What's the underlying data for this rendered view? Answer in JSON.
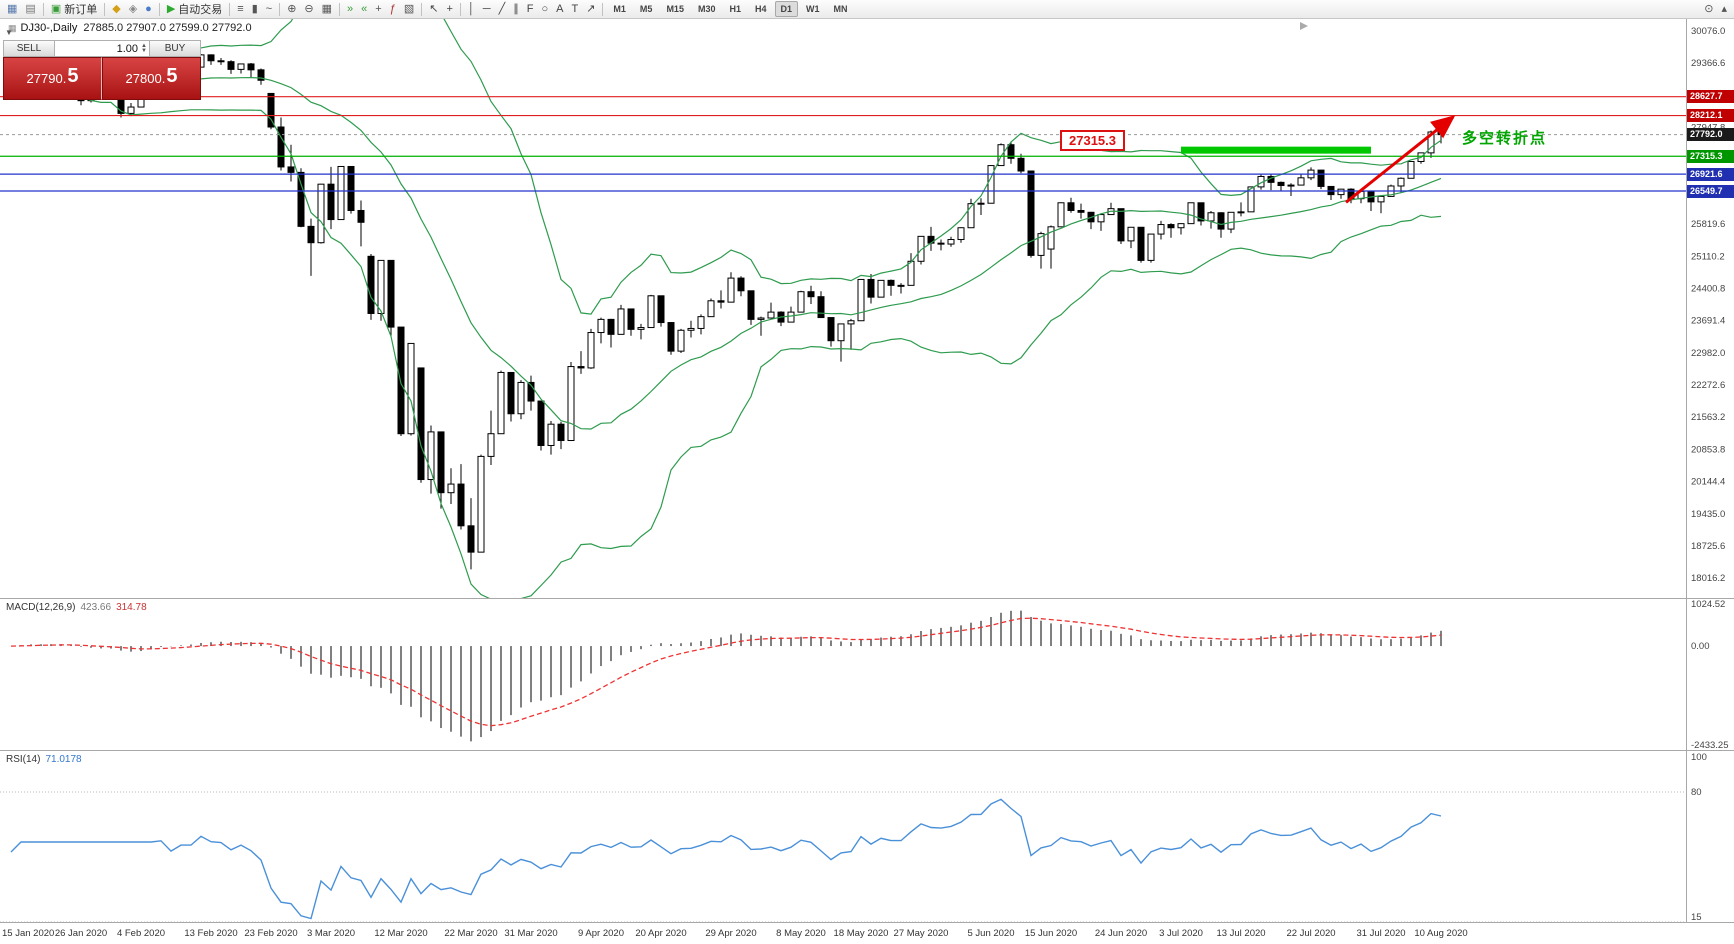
{
  "toolbar": {
    "groups": [
      [
        {
          "name": "chart-window-icon",
          "glyph": "▦",
          "color": "#5577aa"
        },
        {
          "name": "window-layout-icon",
          "glyph": "▤",
          "color": "#777777"
        }
      ],
      [
        {
          "name": "new-order-button",
          "glyph": "▣",
          "color": "#3a9d3a",
          "label": "新订单"
        }
      ],
      [
        {
          "name": "market-watch-icon",
          "glyph": "◆",
          "color": "#d4a017"
        },
        {
          "name": "data-window-icon",
          "glyph": "◈",
          "color": "#888888"
        },
        {
          "name": "community-icon",
          "glyph": "●",
          "color": "#4a7dc9"
        }
      ],
      [
        {
          "name": "autotrading-button",
          "glyph": "▶",
          "color": "#2eab2e",
          "label": "自动交易"
        }
      ],
      [
        {
          "name": "bar-chart-type-icon",
          "glyph": "≡",
          "color": "#555555"
        },
        {
          "name": "candlestick-type-icon",
          "glyph": "▮",
          "color": "#555555"
        },
        {
          "name": "line-chart-type-icon",
          "glyph": "~",
          "color": "#555555"
        }
      ],
      [
        {
          "name": "zoom-in-icon",
          "glyph": "⊕",
          "color": "#555555"
        },
        {
          "name": "zoom-out-icon",
          "glyph": "⊖",
          "color": "#555555"
        },
        {
          "name": "tile-windows-icon",
          "glyph": "▦",
          "color": "#555555"
        }
      ],
      [
        {
          "name": "auto-scroll-icon",
          "glyph": "»",
          "color": "#3a9d3a"
        },
        {
          "name": "chart-shift-icon",
          "glyph": "«",
          "color": "#3a9d3a"
        },
        {
          "name": "new-chart-icon",
          "glyph": "+",
          "color": "#555555"
        },
        {
          "name": "indicators-icon",
          "glyph": "ƒ",
          "color": "#b03030"
        },
        {
          "name": "templates-icon",
          "glyph": "▧",
          "color": "#555555"
        }
      ],
      [
        {
          "name": "cursor-icon",
          "glyph": "↖",
          "color": "#444444"
        },
        {
          "name": "crosshair-icon",
          "glyph": "+",
          "color": "#444444"
        }
      ],
      [
        {
          "name": "vertical-line-icon",
          "glyph": "│",
          "color": "#444444"
        },
        {
          "name": "horizontal-line-icon",
          "glyph": "─",
          "color": "#444444"
        },
        {
          "name": "trendline-icon",
          "glyph": "╱",
          "color": "#444444"
        },
        {
          "name": "channel-icon",
          "glyph": "∥",
          "color": "#444444"
        },
        {
          "name": "fibonacci-icon",
          "glyph": "F",
          "color": "#444444"
        },
        {
          "name": "shapes-icon",
          "glyph": "○",
          "color": "#444444"
        },
        {
          "name": "text-icon",
          "glyph": "A",
          "color": "#444444"
        },
        {
          "name": "label-icon",
          "glyph": "T",
          "color": "#444444"
        },
        {
          "name": "arrows-icon",
          "glyph": "↗",
          "color": "#444444"
        }
      ]
    ],
    "timeframes": [
      "M1",
      "M5",
      "M15",
      "M30",
      "H1",
      "H4",
      "D1",
      "W1",
      "MN"
    ],
    "active_timeframe": "D1",
    "right_icons": [
      {
        "name": "search-icon",
        "glyph": "⊙",
        "color": "#555555"
      },
      {
        "name": "toolbars-menu-icon",
        "glyph": "▴",
        "color": "#555555"
      }
    ]
  },
  "chart": {
    "title_symbol": "DJ30-,Daily",
    "title_ohlc": "27885.0 27907.0 27599.0 27792.0"
  },
  "trade_panel": {
    "sell_label": "SELL",
    "buy_label": "BUY",
    "volume": "1.00",
    "sell_price": "27790.5",
    "buy_price": "27800.5"
  },
  "annotations": {
    "price_callout": "27315.3",
    "cn_note": "多空转折点"
  },
  "macd_panel": {
    "label": "MACD(12,26,9)",
    "value_main": "423.66",
    "value_signal": "314.78",
    "axis_ticks": [
      {
        "text": "1024.52",
        "value": 1024.52
      },
      {
        "text": "0.00",
        "value": 0
      },
      {
        "text": "-2433.25",
        "value": -2433.25
      }
    ]
  },
  "rsi_panel": {
    "label": "RSI(14)",
    "value": "71.0178",
    "axis_ticks": [
      {
        "text": "100",
        "value": 100
      },
      {
        "text": "80",
        "value": 80
      },
      {
        "text": "15",
        "value": 15
      }
    ],
    "levels": [
      80,
      15
    ]
  },
  "chart_data": {
    "type": "candlestick",
    "symbol": "DJ30-",
    "timeframe": "Daily",
    "ohlc_current": {
      "open": 27885.0,
      "high": 27907.0,
      "low": 27599.0,
      "close": 27792.0
    },
    "y_top_price": 30076.0,
    "y_bottom_price": 17799.5,
    "y_axis_ticks": [
      "30076.0",
      "29366.6",
      "28657.2",
      "27947.8",
      "27238.4",
      "26529.0",
      "25819.6",
      "25110.2",
      "24400.8",
      "23691.4",
      "22982.0",
      "22272.6",
      "21563.2",
      "20853.8",
      "20144.4",
      "19435.0",
      "18725.6",
      "18016.2"
    ],
    "x_tick_labels": [
      "15 Jan 2020",
      "26 Jan 2020",
      "4 Feb 2020",
      "13 Feb 2020",
      "23 Feb 2020",
      "3 Mar 2020",
      "12 Mar 2020",
      "22 Mar 2020",
      "31 Mar 2020",
      "9 Apr 2020",
      "20 Apr 2020",
      "29 Apr 2020",
      "8 May 2020",
      "18 May 2020",
      "27 May 2020",
      "5 Jun 2020",
      "15 Jun 2020",
      "24 Jun 2020",
      "3 Jul 2020",
      "13 Jul 2020",
      "22 Jul 2020",
      "31 Jul 2020",
      "10 Aug 2020"
    ],
    "x_tick_indices": [
      0,
      7,
      13,
      20,
      26,
      32,
      39,
      46,
      52,
      59,
      65,
      72,
      79,
      85,
      91,
      98,
      104,
      111,
      117,
      123,
      130,
      137,
      143
    ],
    "candles": [
      [
        29000,
        29130,
        28950,
        29030
      ],
      [
        29030,
        29310,
        29000,
        29300
      ],
      [
        29300,
        29420,
        29250,
        29350
      ],
      [
        29350,
        29380,
        29060,
        29200
      ],
      [
        29200,
        29320,
        29150,
        29190
      ],
      [
        29190,
        29230,
        29010,
        29160
      ],
      [
        29160,
        29230,
        28840,
        28990
      ],
      [
        28990,
        29000,
        28440,
        28540
      ],
      [
        28540,
        28780,
        28500,
        28720
      ],
      [
        28720,
        28800,
        28580,
        28730
      ],
      [
        28730,
        28950,
        28680,
        28860
      ],
      [
        28860,
        28890,
        28170,
        28260
      ],
      [
        28260,
        28490,
        28200,
        28400
      ],
      [
        28400,
        28850,
        28400,
        28810
      ],
      [
        28810,
        29310,
        28810,
        29290
      ],
      [
        29290,
        29410,
        29220,
        29380
      ],
      [
        29380,
        29390,
        29060,
        29100
      ],
      [
        29100,
        29300,
        29080,
        29280
      ],
      [
        29280,
        29380,
        29210,
        29280
      ],
      [
        29280,
        29570,
        29280,
        29550
      ],
      [
        29550,
        29560,
        29330,
        29420
      ],
      [
        29420,
        29480,
        29330,
        29400
      ],
      [
        29400,
        29430,
        29130,
        29230
      ],
      [
        29230,
        29360,
        29140,
        29350
      ],
      [
        29350,
        29370,
        29060,
        29220
      ],
      [
        29220,
        29250,
        28890,
        28990
      ],
      [
        28700,
        28710,
        27910,
        27960
      ],
      [
        27960,
        28170,
        27000,
        27080
      ],
      [
        27080,
        27570,
        26760,
        26960
      ],
      [
        26960,
        27050,
        25750,
        25770
      ],
      [
        25770,
        25940,
        24680,
        25410
      ],
      [
        25410,
        26710,
        25390,
        26700
      ],
      [
        26700,
        27080,
        25710,
        25920
      ],
      [
        25920,
        27100,
        25920,
        27090
      ],
      [
        27090,
        27090,
        26050,
        26120
      ],
      [
        26120,
        26340,
        25330,
        25860
      ],
      [
        25110,
        25160,
        23710,
        23850
      ],
      [
        23850,
        25020,
        23690,
        25020
      ],
      [
        25020,
        25020,
        23330,
        23550
      ],
      [
        23550,
        23550,
        21150,
        21200
      ],
      [
        21200,
        23190,
        21160,
        23190
      ],
      [
        22650,
        22650,
        20120,
        20190
      ],
      [
        20190,
        21380,
        19880,
        21240
      ],
      [
        21240,
        21240,
        19550,
        19900
      ],
      [
        19900,
        20440,
        19650,
        20090
      ],
      [
        20090,
        20530,
        19090,
        19170
      ],
      [
        19170,
        19780,
        18210,
        18590
      ],
      [
        18590,
        20740,
        18590,
        20700
      ],
      [
        20700,
        21710,
        20510,
        21200
      ],
      [
        21200,
        22590,
        21200,
        22550
      ],
      [
        22550,
        22550,
        21470,
        21640
      ],
      [
        21640,
        22380,
        21520,
        22330
      ],
      [
        22330,
        22480,
        21710,
        21920
      ],
      [
        21920,
        21920,
        20830,
        20940
      ],
      [
        20940,
        21480,
        20740,
        21410
      ],
      [
        21410,
        21460,
        20860,
        21050
      ],
      [
        21050,
        22780,
        21050,
        22680
      ],
      [
        22680,
        23020,
        22520,
        22650
      ],
      [
        22650,
        23510,
        22630,
        23430
      ],
      [
        23430,
        23760,
        23190,
        23720
      ],
      [
        23720,
        23730,
        23100,
        23390
      ],
      [
        23390,
        24040,
        23390,
        23950
      ],
      [
        23950,
        23950,
        23360,
        23500
      ],
      [
        23500,
        23620,
        23280,
        23540
      ],
      [
        23540,
        24260,
        23540,
        24240
      ],
      [
        24240,
        24240,
        23560,
        23650
      ],
      [
        23650,
        23660,
        22940,
        23020
      ],
      [
        23020,
        23510,
        22980,
        23480
      ],
      [
        23480,
        23690,
        23320,
        23520
      ],
      [
        23520,
        23830,
        23390,
        23780
      ],
      [
        23780,
        24180,
        23780,
        24130
      ],
      [
        24130,
        24360,
        23960,
        24100
      ],
      [
        24100,
        24760,
        24100,
        24630
      ],
      [
        24630,
        24670,
        24230,
        24350
      ],
      [
        24350,
        24350,
        23600,
        23720
      ],
      [
        23720,
        23780,
        23360,
        23750
      ],
      [
        23750,
        24090,
        23740,
        23880
      ],
      [
        23880,
        23900,
        23570,
        23660
      ],
      [
        23660,
        24000,
        23660,
        23880
      ],
      [
        23880,
        24350,
        23880,
        24330
      ],
      [
        24330,
        24460,
        24060,
        24220
      ],
      [
        24220,
        24340,
        23750,
        23760
      ],
      [
        23760,
        23760,
        23120,
        23250
      ],
      [
        23250,
        23630,
        22790,
        23620
      ],
      [
        23620,
        23730,
        23050,
        23690
      ],
      [
        23690,
        24600,
        23690,
        24600
      ],
      [
        24600,
        24720,
        24070,
        24210
      ],
      [
        24210,
        24580,
        24210,
        24580
      ],
      [
        24580,
        24600,
        24240,
        24470
      ],
      [
        24470,
        24520,
        24290,
        24470
      ],
      [
        24470,
        25180,
        24470,
        25000
      ],
      [
        25000,
        25550,
        24930,
        25550
      ],
      [
        25550,
        25760,
        25230,
        25400
      ],
      [
        25400,
        25480,
        25240,
        25380
      ],
      [
        25380,
        25540,
        25320,
        25480
      ],
      [
        25480,
        25750,
        25410,
        25740
      ],
      [
        25740,
        26380,
        25740,
        26270
      ],
      [
        26270,
        26390,
        26020,
        26280
      ],
      [
        26280,
        27120,
        26280,
        27110
      ],
      [
        27110,
        27600,
        27110,
        27570
      ],
      [
        27570,
        27640,
        27150,
        27270
      ],
      [
        27270,
        27370,
        26940,
        26990
      ],
      [
        26990,
        26990,
        25080,
        25130
      ],
      [
        25130,
        25650,
        24840,
        25610
      ],
      [
        25270,
        25790,
        24840,
        25760
      ],
      [
        25760,
        26300,
        25760,
        26290
      ],
      [
        26290,
        26400,
        26070,
        26120
      ],
      [
        26120,
        26270,
        25940,
        26080
      ],
      [
        26080,
        26090,
        25710,
        25870
      ],
      [
        25870,
        26060,
        25670,
        26030
      ],
      [
        26030,
        26290,
        26030,
        26160
      ],
      [
        26160,
        26160,
        25380,
        25450
      ],
      [
        25450,
        25750,
        25290,
        25750
      ],
      [
        25750,
        25750,
        24970,
        25020
      ],
      [
        25020,
        25600,
        24970,
        25600
      ],
      [
        25600,
        25890,
        25480,
        25810
      ],
      [
        25810,
        25840,
        25520,
        25740
      ],
      [
        25740,
        25840,
        25590,
        25830
      ],
      [
        25830,
        26290,
        25830,
        26290
      ],
      [
        26290,
        26290,
        25790,
        25890
      ],
      [
        25890,
        26110,
        25720,
        26070
      ],
      [
        26070,
        26080,
        25520,
        25710
      ],
      [
        25710,
        26080,
        25620,
        26080
      ],
      [
        26080,
        26300,
        25990,
        26090
      ],
      [
        26090,
        26650,
        26090,
        26640
      ],
      [
        26640,
        26920,
        26580,
        26870
      ],
      [
        26870,
        26920,
        26570,
        26740
      ],
      [
        26740,
        26760,
        26550,
        26670
      ],
      [
        26670,
        26720,
        26440,
        26680
      ],
      [
        26680,
        26930,
        26680,
        26840
      ],
      [
        26840,
        27070,
        26790,
        27010
      ],
      [
        27010,
        27010,
        26590,
        26650
      ],
      [
        26650,
        26660,
        26350,
        26470
      ],
      [
        26470,
        26600,
        26380,
        26590
      ],
      [
        26590,
        26610,
        26280,
        26380
      ],
      [
        26380,
        26560,
        26280,
        26540
      ],
      [
        26540,
        26540,
        26110,
        26310
      ],
      [
        26310,
        26440,
        26060,
        26430
      ],
      [
        26430,
        26690,
        26430,
        26660
      ],
      [
        26660,
        26850,
        26520,
        26830
      ],
      [
        26830,
        27210,
        26830,
        27200
      ],
      [
        27200,
        27390,
        27150,
        27390
      ],
      [
        27390,
        27880,
        27280,
        27850
      ],
      [
        27885,
        27907,
        27599,
        27792
      ]
    ],
    "bollinger": {
      "period": 20,
      "deviation": 2,
      "color": "#2e9b4e"
    },
    "price_lines": [
      {
        "price": 28627.7,
        "label": "28627.7",
        "color": "#e02020",
        "badge_bg": "#c00000"
      },
      {
        "price": 28212.1,
        "label": "28212.1",
        "color": "#e02020",
        "badge_bg": "#c00000"
      },
      {
        "price": 27315.3,
        "label": "27315.3",
        "color": "#00b000",
        "badge_bg": "#009600"
      },
      {
        "price": 26921.6,
        "label": "26921.6",
        "color": "#2233cc",
        "badge_bg": "#2030b0"
      },
      {
        "price": 26549.7,
        "label": "26549.7",
        "color": "#2233cc",
        "badge_bg": "#2030b0"
      }
    ],
    "current_price": {
      "value": 27792.0,
      "label": "27792.0",
      "badge_bg": "#1a1a1a"
    },
    "support_bar": {
      "from_index": 117,
      "to_index": 136,
      "price": 27450,
      "color": "#00c800",
      "thickness": 7
    },
    "trend_arrow": {
      "from_index": 133.5,
      "from_price": 26300,
      "to_index": 144.2,
      "to_price": 28180,
      "color": "#e50000"
    }
  }
}
